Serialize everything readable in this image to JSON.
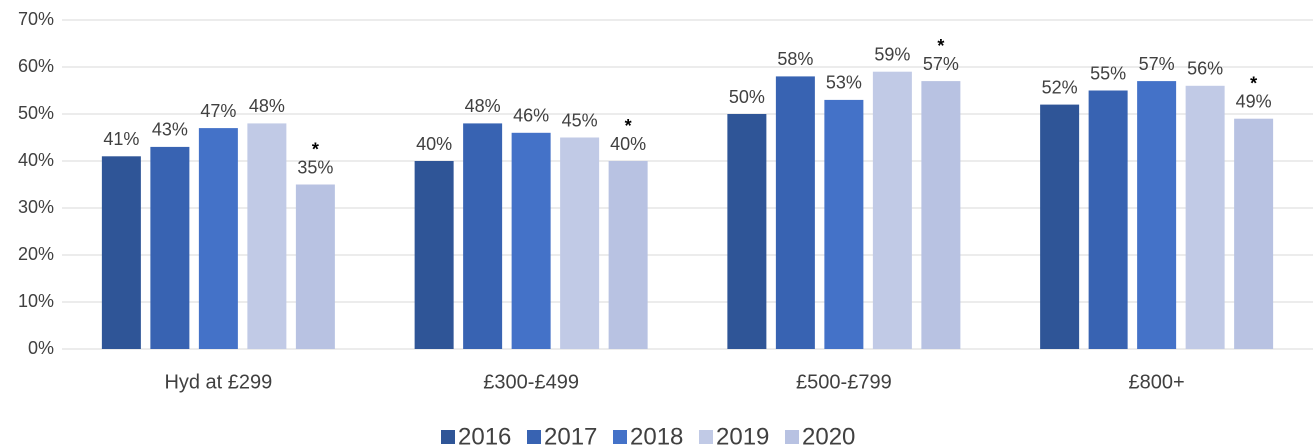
{
  "chart_data": {
    "type": "bar",
    "categories": [
      "Hyd at £299",
      "£300-£499",
      "£500-£799",
      "£800+"
    ],
    "series": [
      {
        "name": "2016",
        "color": "#2f5597",
        "values": [
          41,
          40,
          50,
          52
        ],
        "value_labels": [
          "41%",
          "40%",
          "50%",
          "52%"
        ]
      },
      {
        "name": "2017",
        "color": "#3863b2",
        "values": [
          43,
          48,
          58,
          55
        ],
        "value_labels": [
          "43%",
          "48%",
          "58%",
          "55%"
        ]
      },
      {
        "name": "2018",
        "color": "#4472c8",
        "values": [
          47,
          46,
          53,
          57
        ],
        "value_labels": [
          "47%",
          "46%",
          "53%",
          "57%"
        ]
      },
      {
        "name": "2019",
        "color": "#c1cae6",
        "values": [
          48,
          45,
          59,
          56
        ],
        "value_labels": [
          "48%",
          "45%",
          "59%",
          "56%"
        ]
      },
      {
        "name": "2020",
        "color": "#b8c2e2",
        "values": [
          35,
          40,
          57,
          49
        ],
        "value_labels": [
          "35%",
          "40%",
          "57%",
          "49%"
        ],
        "note": "*"
      }
    ],
    "ylim": [
      0,
      70
    ],
    "yticks": [
      {
        "value": 0,
        "label": "0%"
      },
      {
        "value": 10,
        "label": "10%"
      },
      {
        "value": 20,
        "label": "20%"
      },
      {
        "value": 30,
        "label": "30%"
      },
      {
        "value": 40,
        "label": "40%"
      },
      {
        "value": 50,
        "label": "50%"
      },
      {
        "value": 60,
        "label": "60%"
      },
      {
        "value": 70,
        "label": "70%"
      }
    ],
    "grid": true,
    "legend": "bottom"
  }
}
